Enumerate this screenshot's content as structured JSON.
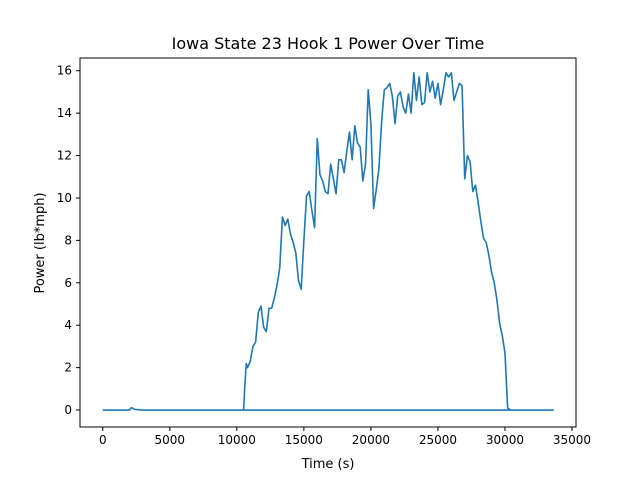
{
  "chart_data": {
    "type": "line",
    "title": "Iowa State 23 Hook 1 Power Over Time",
    "xlabel": "Time (s)",
    "ylabel": "Power (lb*mph)",
    "xlim": [
      -1700,
      35300
    ],
    "ylim": [
      -0.8,
      16.6
    ],
    "xticks": [
      0,
      5000,
      10000,
      15000,
      20000,
      25000,
      30000,
      35000
    ],
    "yticks": [
      0,
      2,
      4,
      6,
      8,
      10,
      12,
      14,
      16
    ],
    "grid": false,
    "line_color": "#1f77b4",
    "series": [
      {
        "x": [
          0,
          2000,
          2100,
          2200,
          2300,
          2400,
          3000,
          10500,
          10600,
          10700,
          10800,
          11000,
          11200,
          11400,
          11600,
          11800,
          12000,
          12200,
          12400,
          12600,
          12800,
          13000,
          13200,
          13400,
          13600,
          13800,
          14000,
          14200,
          14400,
          14600,
          14800,
          15000,
          15200,
          15400,
          15600,
          15800,
          16000,
          16200,
          16400,
          16600,
          16800,
          17000,
          17200,
          17400,
          17600,
          17800,
          18000,
          18200,
          18400,
          18600,
          18800,
          19000,
          19200,
          19400,
          19600,
          19800,
          20000,
          20200,
          20400,
          20600,
          20800,
          21000,
          21200,
          21400,
          21600,
          21800,
          22000,
          22200,
          22400,
          22600,
          22800,
          23000,
          23200,
          23400,
          23600,
          23800,
          24000,
          24200,
          24400,
          24600,
          24800,
          25000,
          25200,
          25400,
          25600,
          25800,
          26000,
          26200,
          26400,
          26600,
          26800,
          27000,
          27200,
          27400,
          27600,
          27800,
          28000,
          28200,
          28400,
          28600,
          28800,
          29000,
          29200,
          29400,
          29600,
          29800,
          30000,
          30200,
          30400,
          33600,
          33600,
          10500
        ],
        "y": [
          0,
          0,
          0.1,
          0.1,
          0.05,
          0.03,
          0,
          0,
          1.2,
          2.2,
          2.0,
          2.3,
          3.0,
          3.2,
          4.6,
          4.9,
          3.9,
          3.7,
          4.8,
          4.8,
          5.3,
          5.9,
          6.7,
          9.1,
          8.7,
          9.0,
          8.3,
          7.9,
          7.4,
          6.1,
          5.7,
          8.0,
          10.1,
          10.3,
          9.4,
          8.6,
          12.8,
          11.1,
          10.8,
          10.3,
          10.2,
          11.6,
          10.9,
          10.2,
          11.8,
          11.8,
          11.2,
          12.2,
          13.1,
          11.8,
          13.4,
          12.6,
          12.4,
          10.8,
          11.6,
          15.1,
          13.5,
          9.5,
          10.4,
          11.4,
          13.6,
          15.1,
          15.2,
          15.4,
          14.8,
          13.5,
          14.8,
          15.0,
          14.3,
          14.0,
          14.9,
          14.0,
          15.9,
          14.6,
          15.7,
          14.4,
          14.5,
          15.9,
          15.0,
          15.5,
          14.7,
          15.4,
          14.4,
          15.1,
          15.9,
          15.7,
          15.9,
          14.6,
          15.0,
          15.4,
          15.3,
          10.9,
          12.0,
          11.7,
          10.3,
          10.6,
          9.8,
          8.9,
          8.1,
          7.9,
          7.3,
          6.5,
          6.0,
          5.2,
          4.1,
          3.5,
          2.7,
          0.1,
          0,
          0,
          0,
          0
        ]
      }
    ]
  }
}
